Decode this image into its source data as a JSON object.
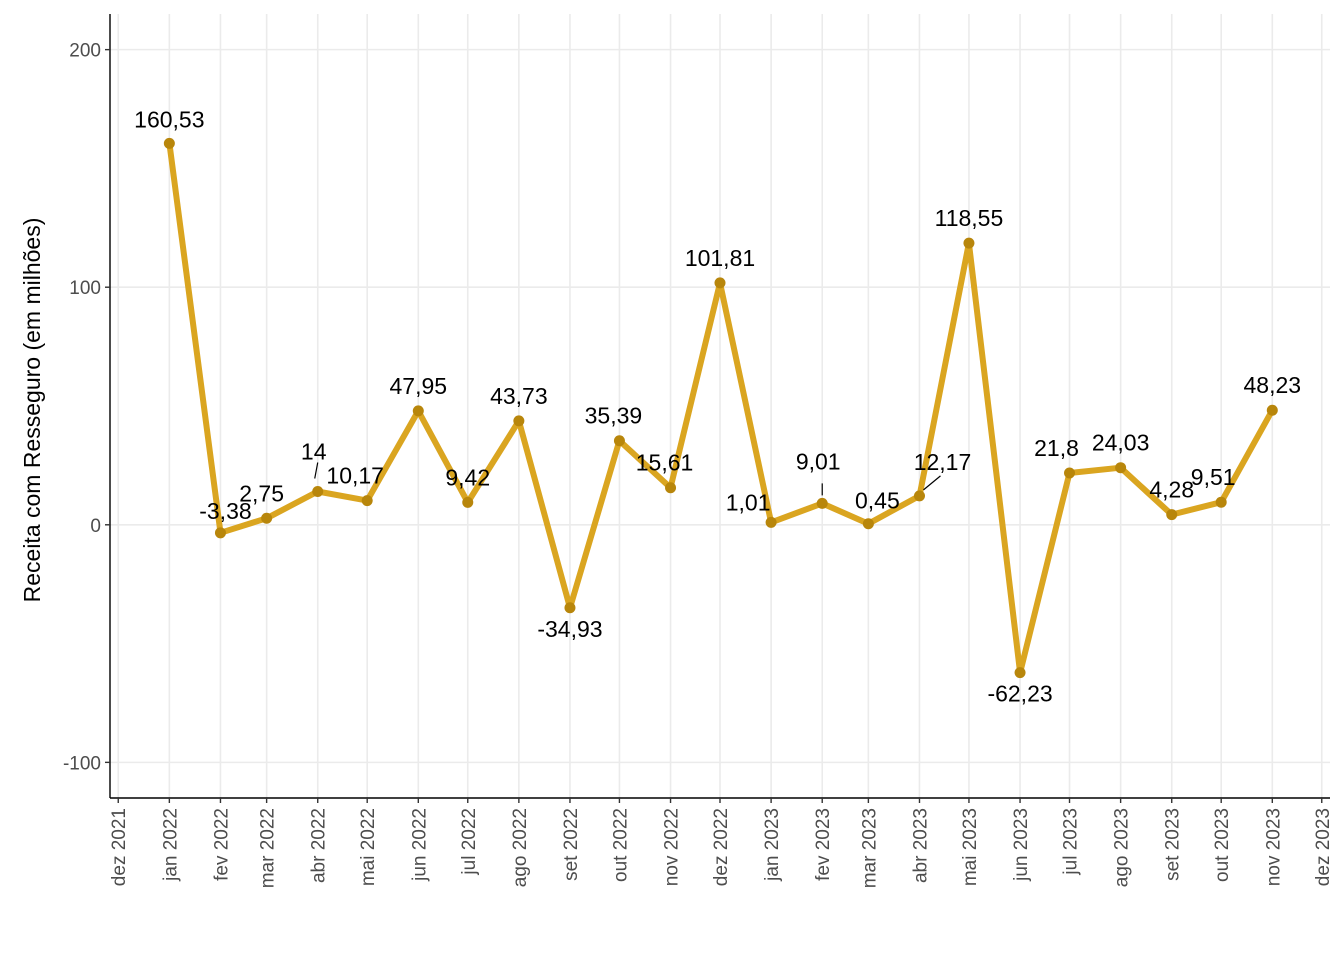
{
  "chart_data": {
    "type": "line",
    "ylabel": "Receita com Resseguro (em milhões)",
    "xlabel": "",
    "title": "",
    "ylim": [
      -115,
      215
    ],
    "y_ticks": [
      -100,
      0,
      100,
      200
    ],
    "y_tick_labels": [
      "-100",
      "0",
      "100",
      "200"
    ],
    "x_ticks": [
      "dez 2021",
      "jan 2022",
      "fev 2022",
      "mar 2022",
      "abr 2022",
      "mai 2022",
      "jun 2022",
      "jul 2022",
      "ago 2022",
      "set 2022",
      "out 2022",
      "nov 2022",
      "dez 2022",
      "jan 2023",
      "fev 2023",
      "mar 2023",
      "abr 2023",
      "mai 2023",
      "jun 2023",
      "jul 2023",
      "ago 2023",
      "set 2023",
      "out 2023",
      "nov 2023",
      "dez 2023"
    ],
    "x_range": [
      "2021-11-26",
      "2023-12-06"
    ],
    "grid": true,
    "legend": "none",
    "series": [
      {
        "color": "#daa520",
        "marker_color": "#b8860b",
        "points": [
          {
            "date": "2022-01-01",
            "value": 160.53,
            "label": "160,53"
          },
          {
            "date": "2022-02-01",
            "value": -3.38,
            "label": "-3,38"
          },
          {
            "date": "2022-03-01",
            "value": 2.75,
            "label": "2,75"
          },
          {
            "date": "2022-04-01",
            "value": 14,
            "label": "14"
          },
          {
            "date": "2022-05-01",
            "value": 10.17,
            "label": "10,17"
          },
          {
            "date": "2022-06-01",
            "value": 47.95,
            "label": "47,95"
          },
          {
            "date": "2022-07-01",
            "value": 9.42,
            "label": "9,42"
          },
          {
            "date": "2022-08-01",
            "value": 43.73,
            "label": "43,73"
          },
          {
            "date": "2022-09-01",
            "value": -34.93,
            "label": "-34,93"
          },
          {
            "date": "2022-10-01",
            "value": 35.39,
            "label": "35,39"
          },
          {
            "date": "2022-11-01",
            "value": 15.61,
            "label": "15,61"
          },
          {
            "date": "2022-12-01",
            "value": 101.81,
            "label": "101,81"
          },
          {
            "date": "2023-01-01",
            "value": 1.01,
            "label": "1,01"
          },
          {
            "date": "2023-02-01",
            "value": 9.01,
            "label": "9,01"
          },
          {
            "date": "2023-03-01",
            "value": 0.45,
            "label": "0,45"
          },
          {
            "date": "2023-04-01",
            "value": 12.17,
            "label": "12,17"
          },
          {
            "date": "2023-05-01",
            "value": 118.55,
            "label": "118,55"
          },
          {
            "date": "2023-06-01",
            "value": -62.23,
            "label": "-62,23"
          },
          {
            "date": "2023-07-01",
            "value": 21.8,
            "label": "21,8"
          },
          {
            "date": "2023-08-01",
            "value": 24.03,
            "label": "24,03"
          },
          {
            "date": "2023-09-01",
            "value": 4.28,
            "label": "4,28"
          },
          {
            "date": "2023-10-01",
            "value": 9.51,
            "label": "9,51"
          },
          {
            "date": "2023-11-01",
            "value": 48.23,
            "label": "48,23"
          }
        ]
      }
    ]
  }
}
